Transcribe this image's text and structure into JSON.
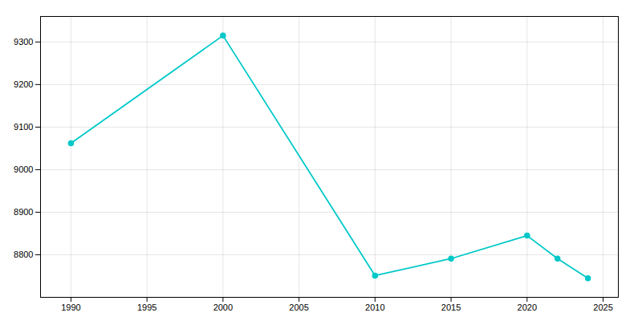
{
  "chart_data": {
    "type": "line",
    "x": [
      1990,
      2000,
      2010,
      2015,
      2020,
      2022,
      2024
    ],
    "values": [
      9062,
      9315,
      8751,
      8791,
      8845,
      8791,
      8745
    ],
    "color": "#00c8c8",
    "marker": "circle",
    "xlim": [
      1988,
      2026
    ],
    "ylim": [
      8700,
      9360
    ],
    "xticks": [
      1990,
      1995,
      2000,
      2005,
      2010,
      2015,
      2020,
      2025
    ],
    "yticks": [
      8800,
      8900,
      9000,
      9100,
      9200,
      9300
    ],
    "grid": true
  }
}
